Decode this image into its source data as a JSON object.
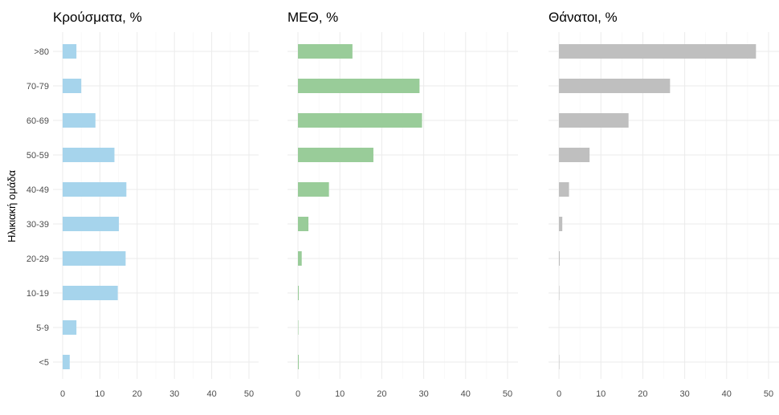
{
  "chart_data": {
    "type": "bar",
    "orientation": "horizontal",
    "ylabel": "Ηλικιακή ομάδα",
    "categories": [
      ">80",
      "70-79",
      "60-69",
      "50-59",
      "40-49",
      "30-39",
      "20-29",
      "10-19",
      "5-9",
      "<5"
    ],
    "xlim": [
      0,
      50
    ],
    "x_ticks": [
      0,
      10,
      20,
      30,
      40,
      50
    ],
    "grid": true,
    "panels": [
      {
        "title": "Κρούσματα, %",
        "color": "#a6d4ec",
        "values": [
          3.7,
          5.0,
          8.8,
          13.9,
          17.1,
          15.1,
          16.9,
          14.8,
          3.7,
          1.9
        ]
      },
      {
        "title": "ΜΕΘ, %",
        "color": "#99cc99",
        "values": [
          13.0,
          29.0,
          29.6,
          18.0,
          7.4,
          2.5,
          0.9,
          0.2,
          0.1,
          0.2
        ]
      },
      {
        "title": "Θάνατοι, %",
        "color": "#bfbfbf",
        "values": [
          47.0,
          26.5,
          16.6,
          7.3,
          2.4,
          0.8,
          0.2,
          0.1,
          0.0,
          0.1
        ]
      }
    ]
  }
}
